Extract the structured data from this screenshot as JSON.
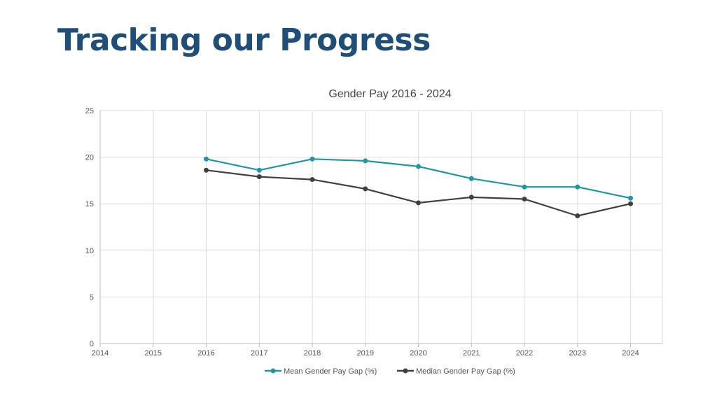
{
  "slide": {
    "title": "Tracking our Progress"
  },
  "chart_data": {
    "type": "line",
    "title": "Gender Pay 2016 - 2024",
    "xlabel": "",
    "ylabel": "",
    "x": [
      2014,
      2015,
      2016,
      2017,
      2018,
      2019,
      2020,
      2021,
      2022,
      2023,
      2024
    ],
    "xlim": [
      2014,
      2024.6
    ],
    "ylim": [
      0,
      25
    ],
    "y_ticks": [
      0,
      5,
      10,
      15,
      20,
      25
    ],
    "grid": true,
    "legend_position": "bottom",
    "series": [
      {
        "name": "Mean Gender Pay Gap (%)",
        "color": "#1e96a8",
        "x": [
          2016,
          2017,
          2018,
          2019,
          2020,
          2021,
          2022,
          2023,
          2024
        ],
        "values": [
          19.8,
          18.6,
          19.8,
          19.6,
          19.0,
          17.7,
          16.8,
          16.8,
          15.6
        ]
      },
      {
        "name": "Median Gender Pay Gap (%)",
        "color": "#404040",
        "x": [
          2016,
          2017,
          2018,
          2019,
          2020,
          2021,
          2022,
          2023,
          2024
        ],
        "values": [
          18.6,
          17.9,
          17.6,
          16.6,
          15.1,
          15.7,
          15.5,
          13.7,
          15.0
        ]
      }
    ]
  }
}
